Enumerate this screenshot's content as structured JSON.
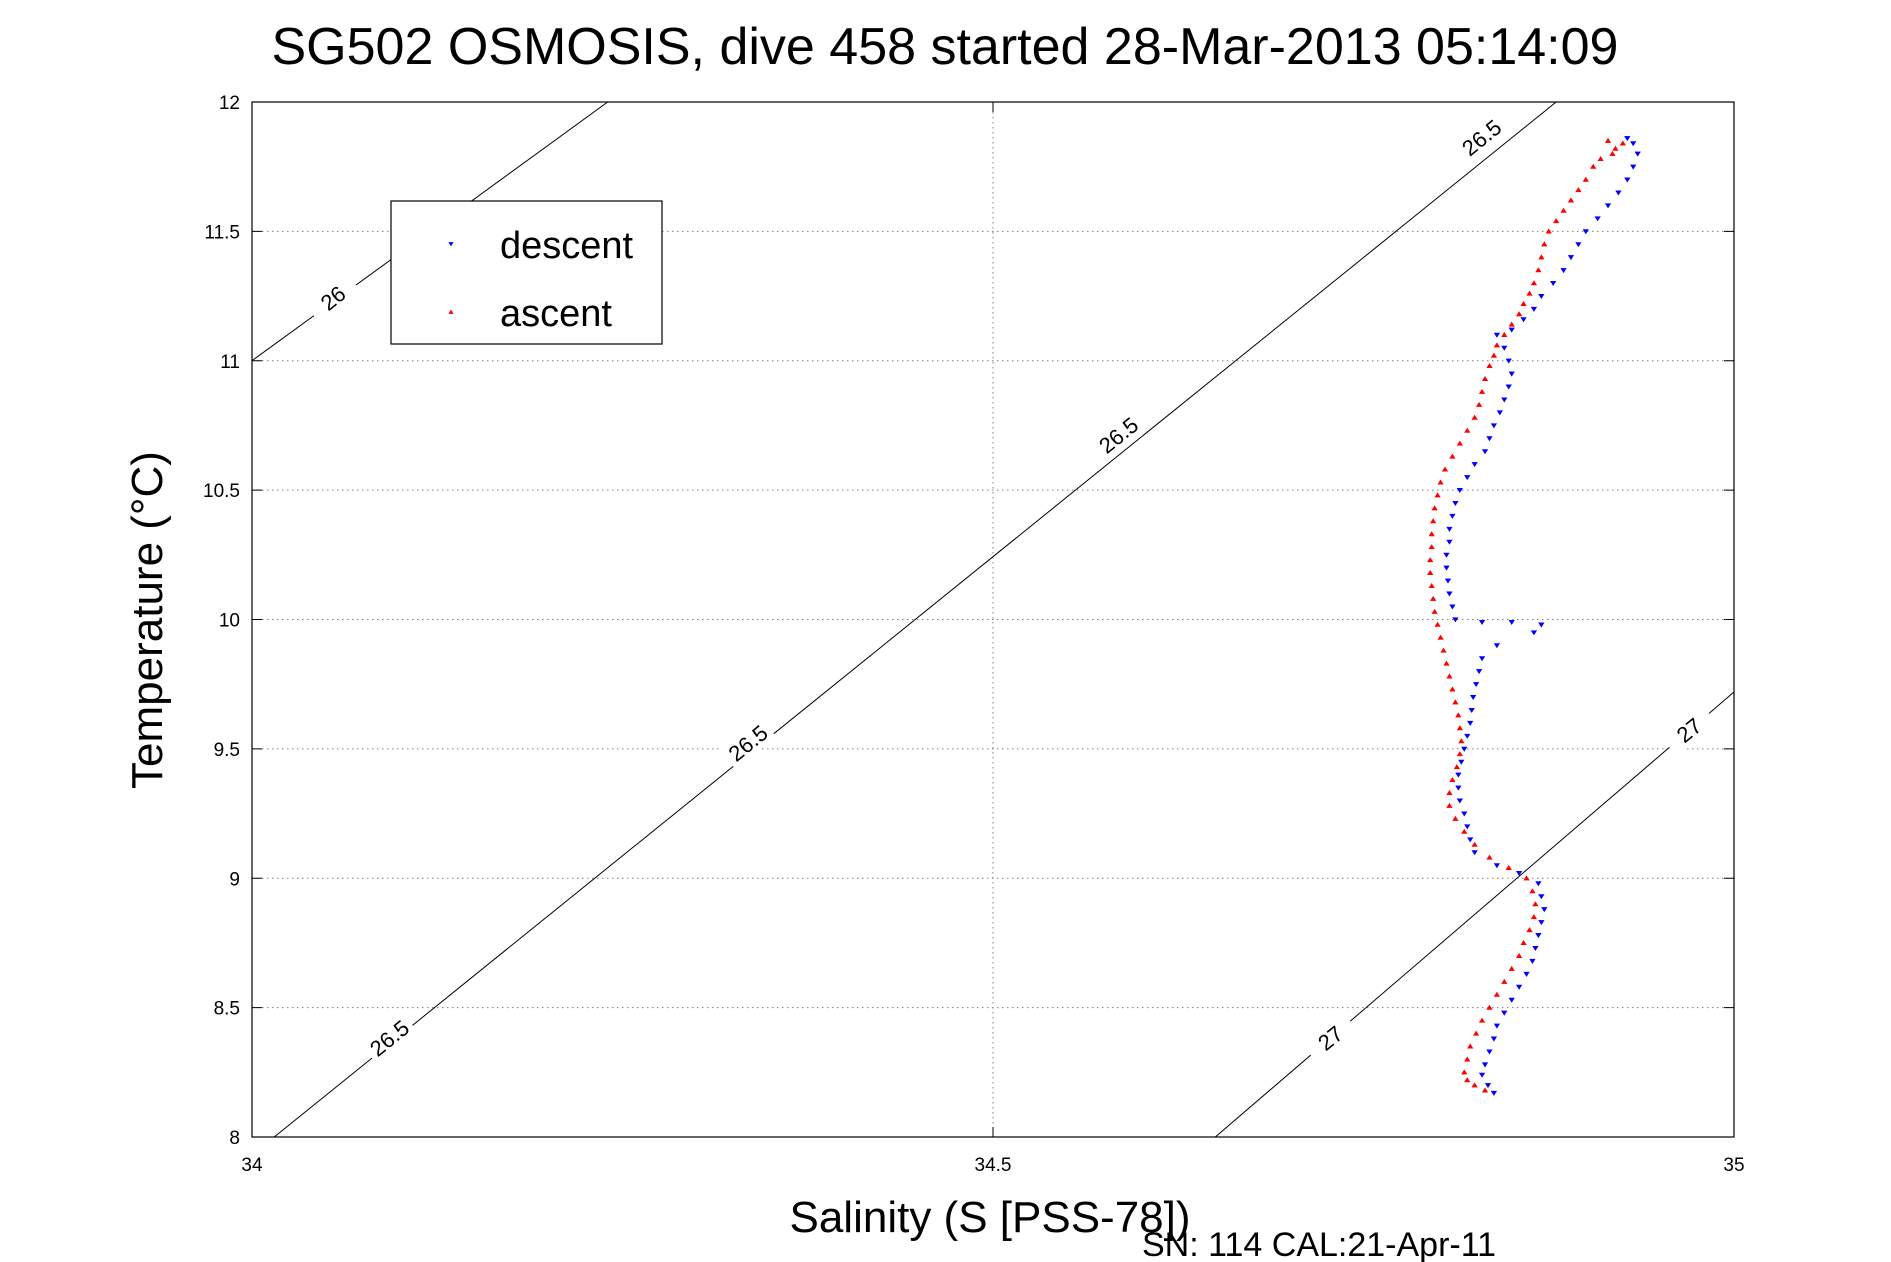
{
  "chart_data": {
    "type": "scatter",
    "title": "SG502 OSMOSIS, dive 458 started 28-Mar-2013 05:14:09",
    "xlabel": "Salinity (S [PSS-78])",
    "ylabel": "Temperature (°C)",
    "footer": "SN: 114  CAL:21-Apr-11",
    "xlim": [
      34,
      35
    ],
    "ylim": [
      8,
      12
    ],
    "x_ticks": [
      {
        "value": 34,
        "label": "34"
      },
      {
        "value": 34.5,
        "label": "34.5"
      },
      {
        "value": 35,
        "label": "35"
      }
    ],
    "y_ticks": [
      {
        "value": 8,
        "label": "8"
      },
      {
        "value": 8.5,
        "label": "8.5"
      },
      {
        "value": 9,
        "label": "9"
      },
      {
        "value": 9.5,
        "label": "9.5"
      },
      {
        "value": 10,
        "label": "10"
      },
      {
        "value": 10.5,
        "label": "10.5"
      },
      {
        "value": 11,
        "label": "11"
      },
      {
        "value": 11.5,
        "label": "11.5"
      },
      {
        "value": 12,
        "label": "12"
      }
    ],
    "grid": true,
    "legend_position": "top-left",
    "density_contours": [
      {
        "level": "26",
        "points": [
          [
            34.0,
            11.0
          ],
          [
            34.24,
            12.0
          ]
        ]
      },
      {
        "level": "26.5",
        "points": [
          [
            34.015,
            8.0
          ],
          [
            34.88,
            12.0
          ]
        ]
      },
      {
        "level": "27",
        "points": [
          [
            34.65,
            8.0
          ],
          [
            35.0,
            9.72
          ]
        ]
      }
    ],
    "contour_labels": [
      {
        "text": "26",
        "x": 34.055,
        "y": 11.24
      },
      {
        "text": "26.5",
        "x": 34.093,
        "y": 8.38
      },
      {
        "text": "26.5",
        "x": 34.335,
        "y": 9.52
      },
      {
        "text": "26.5",
        "x": 34.585,
        "y": 10.71
      },
      {
        "text": "26.5",
        "x": 34.83,
        "y": 11.86
      },
      {
        "text": "27",
        "x": 34.728,
        "y": 8.38
      },
      {
        "text": "27",
        "x": 34.97,
        "y": 9.57
      }
    ],
    "series": [
      {
        "name": "descent",
        "color": "#0000ff",
        "marker": "triangle-down",
        "points": [
          [
            34.928,
            11.86
          ],
          [
            34.932,
            11.84
          ],
          [
            34.935,
            11.8
          ],
          [
            34.932,
            11.75
          ],
          [
            34.928,
            11.7
          ],
          [
            34.922,
            11.65
          ],
          [
            34.915,
            11.6
          ],
          [
            34.908,
            11.55
          ],
          [
            34.9,
            11.5
          ],
          [
            34.895,
            11.45
          ],
          [
            34.89,
            11.4
          ],
          [
            34.885,
            11.35
          ],
          [
            34.878,
            11.3
          ],
          [
            34.87,
            11.25
          ],
          [
            34.865,
            11.2
          ],
          [
            34.858,
            11.16
          ],
          [
            34.85,
            11.12
          ],
          [
            34.84,
            11.1
          ],
          [
            34.845,
            11.05
          ],
          [
            34.848,
            11.0
          ],
          [
            34.85,
            10.95
          ],
          [
            34.848,
            10.9
          ],
          [
            34.845,
            10.85
          ],
          [
            34.842,
            10.8
          ],
          [
            34.838,
            10.75
          ],
          [
            34.835,
            10.7
          ],
          [
            34.832,
            10.65
          ],
          [
            34.825,
            10.6
          ],
          [
            34.82,
            10.55
          ],
          [
            34.815,
            10.5
          ],
          [
            34.812,
            10.45
          ],
          [
            34.81,
            10.4
          ],
          [
            34.808,
            10.35
          ],
          [
            34.808,
            10.3
          ],
          [
            34.806,
            10.25
          ],
          [
            34.806,
            10.2
          ],
          [
            34.807,
            10.15
          ],
          [
            34.808,
            10.1
          ],
          [
            34.81,
            10.05
          ],
          [
            34.812,
            10.0
          ],
          [
            34.83,
            9.99
          ],
          [
            34.85,
            9.99
          ],
          [
            34.87,
            9.98
          ],
          [
            34.865,
            9.95
          ],
          [
            34.84,
            9.9
          ],
          [
            34.83,
            9.85
          ],
          [
            34.828,
            9.8
          ],
          [
            34.826,
            9.75
          ],
          [
            34.824,
            9.7
          ],
          [
            34.823,
            9.65
          ],
          [
            34.822,
            9.6
          ],
          [
            34.82,
            9.55
          ],
          [
            34.818,
            9.5
          ],
          [
            34.816,
            9.45
          ],
          [
            34.814,
            9.4
          ],
          [
            34.814,
            9.35
          ],
          [
            34.815,
            9.3
          ],
          [
            34.818,
            9.25
          ],
          [
            34.82,
            9.2
          ],
          [
            34.822,
            9.15
          ],
          [
            34.825,
            9.1
          ],
          [
            34.84,
            9.05
          ],
          [
            34.855,
            9.02
          ],
          [
            34.868,
            8.98
          ],
          [
            34.87,
            8.93
          ],
          [
            34.872,
            8.88
          ],
          [
            34.87,
            8.83
          ],
          [
            34.868,
            8.78
          ],
          [
            34.866,
            8.73
          ],
          [
            34.864,
            8.68
          ],
          [
            34.86,
            8.63
          ],
          [
            34.855,
            8.58
          ],
          [
            34.85,
            8.53
          ],
          [
            34.845,
            8.48
          ],
          [
            34.84,
            8.43
          ],
          [
            34.838,
            8.38
          ],
          [
            34.835,
            8.33
          ],
          [
            34.832,
            8.28
          ],
          [
            34.83,
            8.24
          ],
          [
            34.834,
            8.2
          ],
          [
            34.838,
            8.17
          ]
        ]
      },
      {
        "name": "ascent",
        "color": "#ff0000",
        "marker": "triangle-up",
        "points": [
          [
            34.925,
            11.84
          ],
          [
            34.92,
            11.82
          ],
          [
            34.918,
            11.8
          ],
          [
            34.915,
            11.85
          ],
          [
            34.91,
            11.78
          ],
          [
            34.905,
            11.75
          ],
          [
            34.9,
            11.7
          ],
          [
            34.895,
            11.66
          ],
          [
            34.89,
            11.62
          ],
          [
            34.885,
            11.58
          ],
          [
            34.88,
            11.54
          ],
          [
            34.875,
            11.5
          ],
          [
            34.872,
            11.45
          ],
          [
            34.87,
            11.4
          ],
          [
            34.868,
            11.35
          ],
          [
            34.865,
            11.3
          ],
          [
            34.862,
            11.26
          ],
          [
            34.858,
            11.22
          ],
          [
            34.855,
            11.18
          ],
          [
            34.85,
            11.14
          ],
          [
            34.845,
            11.1
          ],
          [
            34.84,
            11.06
          ],
          [
            34.838,
            11.02
          ],
          [
            34.835,
            10.98
          ],
          [
            34.832,
            10.93
          ],
          [
            34.83,
            10.88
          ],
          [
            34.828,
            10.83
          ],
          [
            34.825,
            10.78
          ],
          [
            34.82,
            10.73
          ],
          [
            34.815,
            10.68
          ],
          [
            34.81,
            10.63
          ],
          [
            34.805,
            10.58
          ],
          [
            34.802,
            10.53
          ],
          [
            34.8,
            10.48
          ],
          [
            34.798,
            10.43
          ],
          [
            34.797,
            10.38
          ],
          [
            34.796,
            10.33
          ],
          [
            34.796,
            10.28
          ],
          [
            34.795,
            10.23
          ],
          [
            34.795,
            10.18
          ],
          [
            34.796,
            10.13
          ],
          [
            34.797,
            10.08
          ],
          [
            34.798,
            10.03
          ],
          [
            34.8,
            9.98
          ],
          [
            34.802,
            9.93
          ],
          [
            34.804,
            9.88
          ],
          [
            34.806,
            9.83
          ],
          [
            34.808,
            9.78
          ],
          [
            34.81,
            9.73
          ],
          [
            34.812,
            9.68
          ],
          [
            34.814,
            9.63
          ],
          [
            34.815,
            9.58
          ],
          [
            34.816,
            9.53
          ],
          [
            34.815,
            9.48
          ],
          [
            34.813,
            9.43
          ],
          [
            34.81,
            9.38
          ],
          [
            34.808,
            9.33
          ],
          [
            34.808,
            9.28
          ],
          [
            34.812,
            9.23
          ],
          [
            34.818,
            9.18
          ],
          [
            34.825,
            9.13
          ],
          [
            34.835,
            9.08
          ],
          [
            34.848,
            9.04
          ],
          [
            34.86,
            9.0
          ],
          [
            34.864,
            8.95
          ],
          [
            34.866,
            8.9
          ],
          [
            34.865,
            8.85
          ],
          [
            34.862,
            8.8
          ],
          [
            34.858,
            8.75
          ],
          [
            34.855,
            8.7
          ],
          [
            34.85,
            8.65
          ],
          [
            34.845,
            8.6
          ],
          [
            34.84,
            8.55
          ],
          [
            34.835,
            8.5
          ],
          [
            34.83,
            8.45
          ],
          [
            34.826,
            8.4
          ],
          [
            34.822,
            8.35
          ],
          [
            34.82,
            8.3
          ],
          [
            34.818,
            8.25
          ],
          [
            34.82,
            8.22
          ],
          [
            34.825,
            8.2
          ],
          [
            34.832,
            8.18
          ]
        ]
      }
    ]
  }
}
